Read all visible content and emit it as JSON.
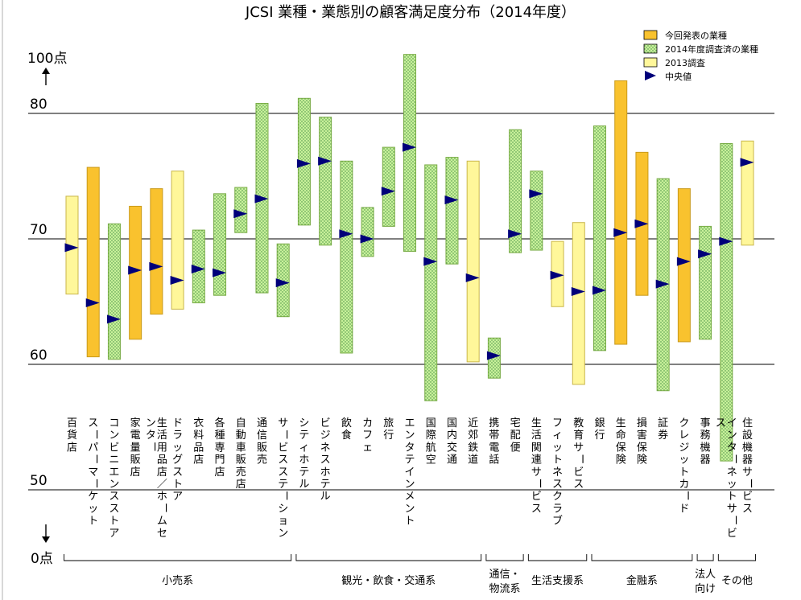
{
  "chart_data": {
    "type": "bar",
    "title": "JCSI 業種・業態別の顧客満足度分布（2014年度）",
    "y_top_label": "100点",
    "y_bottom_label": "0点",
    "y_ticks": [
      {
        "value": 80,
        "label": "80"
      },
      {
        "value": 70,
        "label": "70"
      },
      {
        "value": 60,
        "label": "60"
      },
      {
        "value": 50,
        "label": "50"
      }
    ],
    "ylim": [
      50,
      100
    ],
    "legend": [
      {
        "key": "current",
        "label": "今回発表の業種",
        "color": "#f9c22e",
        "pattern": "solid"
      },
      {
        "key": "surveyed",
        "label": "2014年度調査済の業種",
        "color": "#c8f09a",
        "pattern": "dots"
      },
      {
        "key": "y2013",
        "label": "2013調査",
        "color": "#fff79a",
        "pattern": "solid"
      },
      {
        "key": "median",
        "label": "中央値",
        "color": "#00007a",
        "pattern": "triangle"
      }
    ],
    "legend_position": "top-right",
    "series_style": {
      "current": {
        "fill": "#f9c22e",
        "stroke": "#c99a1a"
      },
      "surveyed": {
        "fill": "#c8f09a",
        "stroke": "#77aa44",
        "dot": "#3e8a3e"
      },
      "y2013": {
        "fill": "#fff79a",
        "stroke": "#c9b64a"
      }
    },
    "industries": [
      {
        "label": "百貨店",
        "kind": "y2013",
        "low": 65.6,
        "high": 73.4,
        "median": 69.3
      },
      {
        "label": "スーパーマーケット",
        "kind": "current",
        "low": 60.6,
        "high": 75.7,
        "median": 64.9
      },
      {
        "label": "コンビニエンスストア",
        "kind": "surveyed",
        "low": 60.4,
        "high": 71.2,
        "median": 63.6
      },
      {
        "label": "家電量販店",
        "kind": "current",
        "low": 62.0,
        "high": 72.6,
        "median": 67.5
      },
      {
        "label": "生活用品店／ホームセンター",
        "kind": "current",
        "low": 64.0,
        "high": 74.0,
        "median": 67.8
      },
      {
        "label": "ドラッグストア",
        "kind": "y2013",
        "low": 64.4,
        "high": 75.4,
        "median": 66.7
      },
      {
        "label": "衣料品店",
        "kind": "surveyed",
        "low": 64.9,
        "high": 70.7,
        "median": 67.6
      },
      {
        "label": "各種専門店",
        "kind": "surveyed",
        "low": 65.5,
        "high": 73.6,
        "median": 67.3
      },
      {
        "label": "自動車販売店",
        "kind": "surveyed",
        "low": 70.5,
        "high": 74.1,
        "median": 72.0
      },
      {
        "label": "通信販売",
        "kind": "surveyed",
        "low": 65.7,
        "high": 80.8,
        "median": 73.2
      },
      {
        "label": "サービスステーション",
        "kind": "surveyed",
        "low": 63.8,
        "high": 69.6,
        "median": 66.5
      },
      {
        "label": "シティホテル",
        "kind": "surveyed",
        "low": 71.1,
        "high": 81.2,
        "median": 76.0
      },
      {
        "label": "ビジネスホテル",
        "kind": "surveyed",
        "low": 69.5,
        "high": 79.7,
        "median": 76.2
      },
      {
        "label": "飲食",
        "kind": "surveyed",
        "low": 60.9,
        "high": 76.2,
        "median": 70.4
      },
      {
        "label": "カフェ",
        "kind": "surveyed",
        "low": 68.6,
        "high": 72.5,
        "median": 70.0
      },
      {
        "label": "旅行",
        "kind": "surveyed",
        "low": 71.0,
        "high": 77.3,
        "median": 73.8
      },
      {
        "label": "エンタテインメント",
        "kind": "surveyed",
        "low": 69.0,
        "high": 84.7,
        "median": 77.3
      },
      {
        "label": "国際航空",
        "kind": "surveyed",
        "low": 57.1,
        "high": 75.9,
        "median": 68.2
      },
      {
        "label": "国内交通",
        "kind": "surveyed",
        "low": 68.0,
        "high": 76.5,
        "median": 73.1
      },
      {
        "label": "近郊鉄道",
        "kind": "y2013",
        "low": 60.2,
        "high": 76.2,
        "median": 66.9
      },
      {
        "label": "携帯電話",
        "kind": "surveyed",
        "low": 58.9,
        "high": 62.1,
        "median": 60.7
      },
      {
        "label": "宅配便",
        "kind": "surveyed",
        "low": 68.9,
        "high": 78.7,
        "median": 70.4
      },
      {
        "label": "生活関連サービス",
        "kind": "surveyed",
        "low": 69.1,
        "high": 75.4,
        "median": 73.6
      },
      {
        "label": "フィットネスクラブ",
        "kind": "y2013",
        "low": 64.6,
        "high": 69.8,
        "median": 67.1
      },
      {
        "label": "教育サービス",
        "kind": "y2013",
        "low": 58.4,
        "high": 71.3,
        "median": 65.8
      },
      {
        "label": "銀行",
        "kind": "surveyed",
        "low": 61.1,
        "high": 79.0,
        "median": 65.9
      },
      {
        "label": "生命保険",
        "kind": "current",
        "low": 61.6,
        "high": 82.6,
        "median": 70.5
      },
      {
        "label": "損害保険",
        "kind": "current",
        "low": 65.5,
        "high": 76.9,
        "median": 71.2
      },
      {
        "label": "証券",
        "kind": "surveyed",
        "low": 57.9,
        "high": 74.8,
        "median": 66.4
      },
      {
        "label": "クレジットカード",
        "kind": "current",
        "low": 61.8,
        "high": 74.0,
        "median": 68.2
      },
      {
        "label": "事務機器",
        "kind": "surveyed",
        "low": 62.0,
        "high": 71.0,
        "median": 68.8
      },
      {
        "label": "インターネットサービス",
        "kind": "surveyed",
        "low": 52.3,
        "high": 77.6,
        "median": 69.8
      },
      {
        "label": "住設機器サービス",
        "kind": "y2013",
        "low": 69.5,
        "high": 77.8,
        "median": 76.1
      }
    ],
    "groups": [
      {
        "label": "小売系",
        "start": 0,
        "end": 10
      },
      {
        "label": "観光・飲食・交通系",
        "start": 11,
        "end": 19
      },
      {
        "label": "通信・物流系",
        "start": 20,
        "end": 21
      },
      {
        "label": "生活支援系",
        "start": 22,
        "end": 24
      },
      {
        "label": "金融系",
        "start": 25,
        "end": 29
      },
      {
        "label": "法人向け",
        "start": 30,
        "end": 30
      },
      {
        "label": "その他",
        "start": 31,
        "end": 32
      }
    ]
  }
}
